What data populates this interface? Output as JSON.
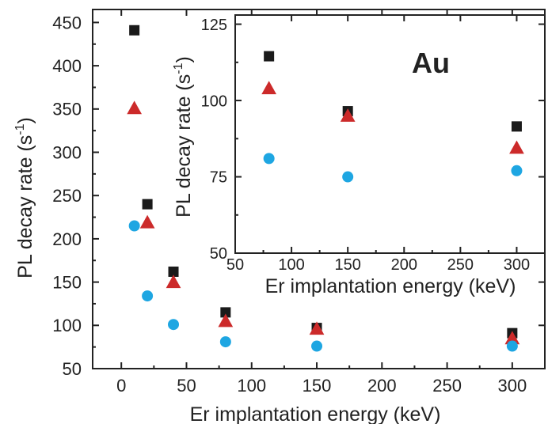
{
  "chart_data": [
    {
      "type": "scatter",
      "xlabel": "Er implantation energy (keV)",
      "ylabel": "PL decay rate (s",
      "ylabel_sup": "-1",
      "ylabel_close": ")",
      "xlim": [
        -22,
        325
      ],
      "ylim": [
        50,
        465
      ],
      "xticks": [
        0,
        50,
        100,
        150,
        200,
        250,
        300
      ],
      "yticks": [
        50,
        100,
        150,
        200,
        250,
        300,
        350,
        400,
        450
      ],
      "series": [
        {
          "marker": "square",
          "color": "#1a1a1a",
          "points": [
            [
              10,
              441
            ],
            [
              20,
              240
            ],
            [
              40,
              162
            ],
            [
              80,
              115
            ],
            [
              150,
              97
            ],
            [
              300,
              91
            ]
          ]
        },
        {
          "marker": "triangle",
          "color": "#cc2a2a",
          "points": [
            [
              10,
              351
            ],
            [
              20,
              219
            ],
            [
              40,
              150
            ],
            [
              80,
              105
            ],
            [
              150,
              96
            ],
            [
              300,
              85
            ]
          ]
        },
        {
          "marker": "circle",
          "color": "#1ea6e2",
          "points": [
            [
              10,
              215
            ],
            [
              20,
              134
            ],
            [
              40,
              101
            ],
            [
              80,
              81
            ],
            [
              150,
              76
            ],
            [
              300,
              76
            ]
          ]
        }
      ]
    },
    {
      "type": "scatter",
      "label": "Au",
      "xlabel": "Er implantation energy (keV)",
      "ylabel": "PL decay rate (s",
      "ylabel_sup": "-1",
      "ylabel_close": ")",
      "xlim": [
        50,
        325
      ],
      "ylim": [
        50,
        128
      ],
      "xticks": [
        50,
        100,
        150,
        200,
        250,
        300
      ],
      "yticks": [
        50,
        75,
        100,
        125
      ],
      "series": [
        {
          "marker": "square",
          "color": "#1a1a1a",
          "points": [
            [
              80,
              114.5
            ],
            [
              150,
              96.5
            ],
            [
              300,
              91.5
            ]
          ]
        },
        {
          "marker": "triangle",
          "color": "#cc2a2a",
          "points": [
            [
              80,
              104
            ],
            [
              150,
              95
            ],
            [
              300,
              84.5
            ]
          ]
        },
        {
          "marker": "circle",
          "color": "#1ea6e2",
          "points": [
            [
              80,
              81
            ],
            [
              150,
              75
            ],
            [
              300,
              77
            ]
          ]
        }
      ]
    }
  ]
}
